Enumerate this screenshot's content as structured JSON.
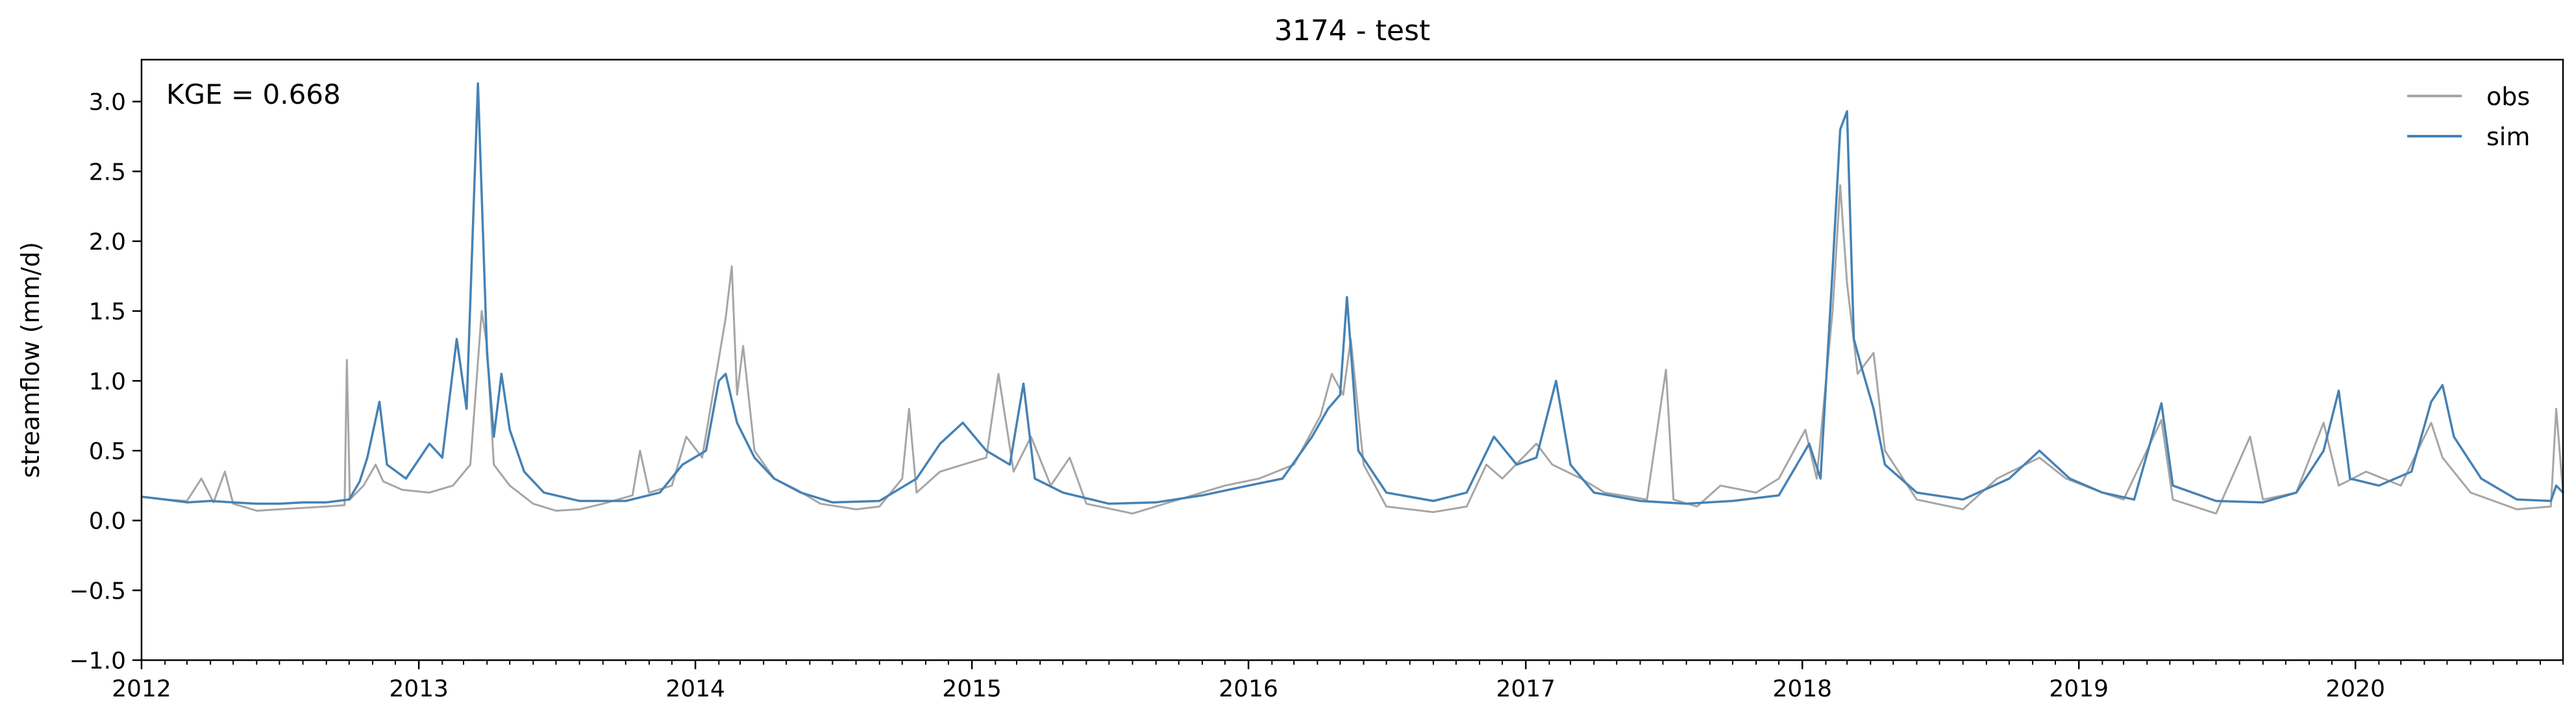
{
  "chart_data": {
    "type": "line",
    "title": "3174 - test",
    "xlabel": "",
    "ylabel": "streamflow (mm/d)",
    "annotation": "KGE = 0.668",
    "x_range": [
      "2012-01-01",
      "2020-10-01"
    ],
    "ylim": [
      -1.0,
      3.3
    ],
    "grid": false,
    "legend": "top-right",
    "x_ticks": [
      "2012",
      "2013",
      "2014",
      "2015",
      "2016",
      "2017",
      "2018",
      "2019",
      "2020"
    ],
    "x_tick_dates": [
      "2012-01-01",
      "2013-01-01",
      "2014-01-01",
      "2015-01-01",
      "2016-01-01",
      "2017-01-01",
      "2018-01-01",
      "2019-01-01",
      "2020-01-01"
    ],
    "y_ticks": [
      "−1.0",
      "−0.5",
      "0.0",
      "0.5",
      "1.0",
      "1.5",
      "2.0",
      "2.5",
      "3.0"
    ],
    "y_tick_values": [
      -1.0,
      -0.5,
      0.0,
      0.5,
      1.0,
      1.5,
      2.0,
      2.5,
      3.0
    ],
    "series": [
      {
        "name": "obs",
        "color": "#a6a6a6",
        "points": [
          [
            "2012-01-01",
            0.17
          ],
          [
            "2012-02-01",
            0.15
          ],
          [
            "2012-03-01",
            0.14
          ],
          [
            "2012-03-20",
            0.3
          ],
          [
            "2012-04-05",
            0.13
          ],
          [
            "2012-04-20",
            0.35
          ],
          [
            "2012-05-01",
            0.12
          ],
          [
            "2012-06-01",
            0.07
          ],
          [
            "2012-07-01",
            0.08
          ],
          [
            "2012-08-01",
            0.09
          ],
          [
            "2012-09-01",
            0.1
          ],
          [
            "2012-09-25",
            0.11
          ],
          [
            "2012-09-28",
            1.15
          ],
          [
            "2012-10-02",
            0.15
          ],
          [
            "2012-10-20",
            0.25
          ],
          [
            "2012-11-05",
            0.4
          ],
          [
            "2012-11-15",
            0.28
          ],
          [
            "2012-12-10",
            0.22
          ],
          [
            "2013-01-15",
            0.2
          ],
          [
            "2013-02-15",
            0.25
          ],
          [
            "2013-03-10",
            0.4
          ],
          [
            "2013-03-25",
            1.5
          ],
          [
            "2013-04-01",
            1.25
          ],
          [
            "2013-04-10",
            0.4
          ],
          [
            "2013-05-01",
            0.25
          ],
          [
            "2013-06-01",
            0.12
          ],
          [
            "2013-07-01",
            0.07
          ],
          [
            "2013-08-01",
            0.08
          ],
          [
            "2013-09-01",
            0.12
          ],
          [
            "2013-10-10",
            0.18
          ],
          [
            "2013-10-20",
            0.5
          ],
          [
            "2013-11-01",
            0.2
          ],
          [
            "2013-12-01",
            0.25
          ],
          [
            "2013-12-20",
            0.6
          ],
          [
            "2014-01-10",
            0.45
          ],
          [
            "2014-02-10",
            1.45
          ],
          [
            "2014-02-18",
            1.82
          ],
          [
            "2014-02-25",
            0.9
          ],
          [
            "2014-03-05",
            1.25
          ],
          [
            "2014-03-20",
            0.5
          ],
          [
            "2014-04-15",
            0.3
          ],
          [
            "2014-05-15",
            0.22
          ],
          [
            "2014-06-15",
            0.12
          ],
          [
            "2014-08-01",
            0.08
          ],
          [
            "2014-09-01",
            0.1
          ],
          [
            "2014-10-01",
            0.3
          ],
          [
            "2014-10-10",
            0.8
          ],
          [
            "2014-10-20",
            0.2
          ],
          [
            "2014-11-20",
            0.35
          ],
          [
            "2014-12-20",
            0.4
          ],
          [
            "2015-01-20",
            0.45
          ],
          [
            "2015-02-05",
            1.05
          ],
          [
            "2015-02-25",
            0.35
          ],
          [
            "2015-03-20",
            0.6
          ],
          [
            "2015-04-15",
            0.25
          ],
          [
            "2015-05-10",
            0.45
          ],
          [
            "2015-06-01",
            0.12
          ],
          [
            "2015-08-01",
            0.05
          ],
          [
            "2015-10-01",
            0.15
          ],
          [
            "2015-12-01",
            0.25
          ],
          [
            "2016-01-15",
            0.3
          ],
          [
            "2016-03-01",
            0.4
          ],
          [
            "2016-04-05",
            0.75
          ],
          [
            "2016-04-20",
            1.05
          ],
          [
            "2016-05-05",
            0.9
          ],
          [
            "2016-05-15",
            1.3
          ],
          [
            "2016-06-01",
            0.4
          ],
          [
            "2016-07-01",
            0.1
          ],
          [
            "2016-09-01",
            0.06
          ],
          [
            "2016-10-15",
            0.1
          ],
          [
            "2016-11-10",
            0.4
          ],
          [
            "2016-12-01",
            0.3
          ],
          [
            "2017-01-15",
            0.55
          ],
          [
            "2017-02-05",
            0.4
          ],
          [
            "2017-03-15",
            0.3
          ],
          [
            "2017-04-15",
            0.2
          ],
          [
            "2017-06-10",
            0.15
          ],
          [
            "2017-07-05",
            1.08
          ],
          [
            "2017-07-15",
            0.15
          ],
          [
            "2017-08-15",
            0.1
          ],
          [
            "2017-09-15",
            0.25
          ],
          [
            "2017-11-01",
            0.2
          ],
          [
            "2017-12-01",
            0.3
          ],
          [
            "2018-01-05",
            0.65
          ],
          [
            "2018-01-20",
            0.3
          ],
          [
            "2018-02-10",
            1.5
          ],
          [
            "2018-02-20",
            2.4
          ],
          [
            "2018-03-01",
            1.7
          ],
          [
            "2018-03-15",
            1.05
          ],
          [
            "2018-04-05",
            1.2
          ],
          [
            "2018-04-20",
            0.5
          ],
          [
            "2018-06-01",
            0.15
          ],
          [
            "2018-08-01",
            0.08
          ],
          [
            "2018-09-15",
            0.3
          ],
          [
            "2018-11-10",
            0.45
          ],
          [
            "2018-12-15",
            0.3
          ],
          [
            "2019-02-01",
            0.2
          ],
          [
            "2019-03-01",
            0.15
          ],
          [
            "2019-04-20",
            0.72
          ],
          [
            "2019-05-05",
            0.15
          ],
          [
            "2019-07-01",
            0.05
          ],
          [
            "2019-08-15",
            0.6
          ],
          [
            "2019-09-01",
            0.15
          ],
          [
            "2019-10-15",
            0.2
          ],
          [
            "2019-11-20",
            0.7
          ],
          [
            "2019-12-10",
            0.25
          ],
          [
            "2020-01-15",
            0.35
          ],
          [
            "2020-03-01",
            0.25
          ],
          [
            "2020-04-10",
            0.7
          ],
          [
            "2020-04-25",
            0.45
          ],
          [
            "2020-06-01",
            0.2
          ],
          [
            "2020-08-01",
            0.08
          ],
          [
            "2020-09-15",
            0.1
          ],
          [
            "2020-09-22",
            0.8
          ],
          [
            "2020-10-01",
            0.2
          ]
        ]
      },
      {
        "name": "sim",
        "color": "#4682b4",
        "points": [
          [
            "2012-01-01",
            0.17
          ],
          [
            "2012-02-01",
            0.15
          ],
          [
            "2012-03-01",
            0.13
          ],
          [
            "2012-04-01",
            0.14
          ],
          [
            "2012-05-01",
            0.13
          ],
          [
            "2012-06-01",
            0.12
          ],
          [
            "2012-07-01",
            0.12
          ],
          [
            "2012-08-01",
            0.13
          ],
          [
            "2012-09-01",
            0.13
          ],
          [
            "2012-10-01",
            0.15
          ],
          [
            "2012-10-15",
            0.28
          ],
          [
            "2012-10-25",
            0.45
          ],
          [
            "2012-11-10",
            0.85
          ],
          [
            "2012-11-20",
            0.4
          ],
          [
            "2012-12-15",
            0.3
          ],
          [
            "2013-01-15",
            0.55
          ],
          [
            "2013-02-01",
            0.45
          ],
          [
            "2013-02-20",
            1.3
          ],
          [
            "2013-03-05",
            0.8
          ],
          [
            "2013-03-20",
            3.13
          ],
          [
            "2013-04-01",
            1.2
          ],
          [
            "2013-04-10",
            0.6
          ],
          [
            "2013-04-20",
            1.05
          ],
          [
            "2013-05-01",
            0.65
          ],
          [
            "2013-05-20",
            0.35
          ],
          [
            "2013-06-15",
            0.2
          ],
          [
            "2013-08-01",
            0.14
          ],
          [
            "2013-10-01",
            0.14
          ],
          [
            "2013-11-15",
            0.2
          ],
          [
            "2013-12-15",
            0.4
          ],
          [
            "2014-01-15",
            0.5
          ],
          [
            "2014-02-01",
            1.0
          ],
          [
            "2014-02-10",
            1.05
          ],
          [
            "2014-02-25",
            0.7
          ],
          [
            "2014-03-20",
            0.45
          ],
          [
            "2014-04-15",
            0.3
          ],
          [
            "2014-05-20",
            0.2
          ],
          [
            "2014-07-01",
            0.13
          ],
          [
            "2014-09-01",
            0.14
          ],
          [
            "2014-10-20",
            0.3
          ],
          [
            "2014-11-20",
            0.55
          ],
          [
            "2014-12-20",
            0.7
          ],
          [
            "2015-01-20",
            0.5
          ],
          [
            "2015-02-20",
            0.4
          ],
          [
            "2015-03-10",
            0.98
          ],
          [
            "2015-03-25",
            0.3
          ],
          [
            "2015-05-01",
            0.2
          ],
          [
            "2015-07-01",
            0.12
          ],
          [
            "2015-09-01",
            0.13
          ],
          [
            "2015-11-01",
            0.18
          ],
          [
            "2016-01-01",
            0.25
          ],
          [
            "2016-02-15",
            0.3
          ],
          [
            "2016-03-25",
            0.6
          ],
          [
            "2016-04-15",
            0.8
          ],
          [
            "2016-05-01",
            0.9
          ],
          [
            "2016-05-10",
            1.6
          ],
          [
            "2016-05-25",
            0.5
          ],
          [
            "2016-07-01",
            0.2
          ],
          [
            "2016-09-01",
            0.14
          ],
          [
            "2016-10-15",
            0.2
          ],
          [
            "2016-11-20",
            0.6
          ],
          [
            "2016-12-20",
            0.4
          ],
          [
            "2017-01-15",
            0.45
          ],
          [
            "2017-02-10",
            1.0
          ],
          [
            "2017-03-01",
            0.4
          ],
          [
            "2017-04-01",
            0.2
          ],
          [
            "2017-06-01",
            0.14
          ],
          [
            "2017-08-01",
            0.12
          ],
          [
            "2017-10-01",
            0.14
          ],
          [
            "2017-12-01",
            0.18
          ],
          [
            "2018-01-10",
            0.55
          ],
          [
            "2018-01-25",
            0.3
          ],
          [
            "2018-02-10",
            1.8
          ],
          [
            "2018-02-20",
            2.8
          ],
          [
            "2018-03-01",
            2.93
          ],
          [
            "2018-03-10",
            1.3
          ],
          [
            "2018-03-20",
            1.1
          ],
          [
            "2018-04-05",
            0.8
          ],
          [
            "2018-04-20",
            0.4
          ],
          [
            "2018-06-01",
            0.2
          ],
          [
            "2018-08-01",
            0.15
          ],
          [
            "2018-10-01",
            0.3
          ],
          [
            "2018-11-10",
            0.5
          ],
          [
            "2018-12-20",
            0.3
          ],
          [
            "2019-02-01",
            0.2
          ],
          [
            "2019-03-15",
            0.15
          ],
          [
            "2019-04-20",
            0.84
          ],
          [
            "2019-05-05",
            0.25
          ],
          [
            "2019-07-01",
            0.14
          ],
          [
            "2019-09-01",
            0.13
          ],
          [
            "2019-10-15",
            0.2
          ],
          [
            "2019-11-20",
            0.5
          ],
          [
            "2019-12-10",
            0.93
          ],
          [
            "2019-12-25",
            0.3
          ],
          [
            "2020-02-01",
            0.25
          ],
          [
            "2020-03-15",
            0.35
          ],
          [
            "2020-04-10",
            0.85
          ],
          [
            "2020-04-25",
            0.97
          ],
          [
            "2020-05-10",
            0.6
          ],
          [
            "2020-06-15",
            0.3
          ],
          [
            "2020-08-01",
            0.15
          ],
          [
            "2020-09-15",
            0.14
          ],
          [
            "2020-09-22",
            0.25
          ],
          [
            "2020-10-01",
            0.2
          ]
        ]
      }
    ]
  }
}
